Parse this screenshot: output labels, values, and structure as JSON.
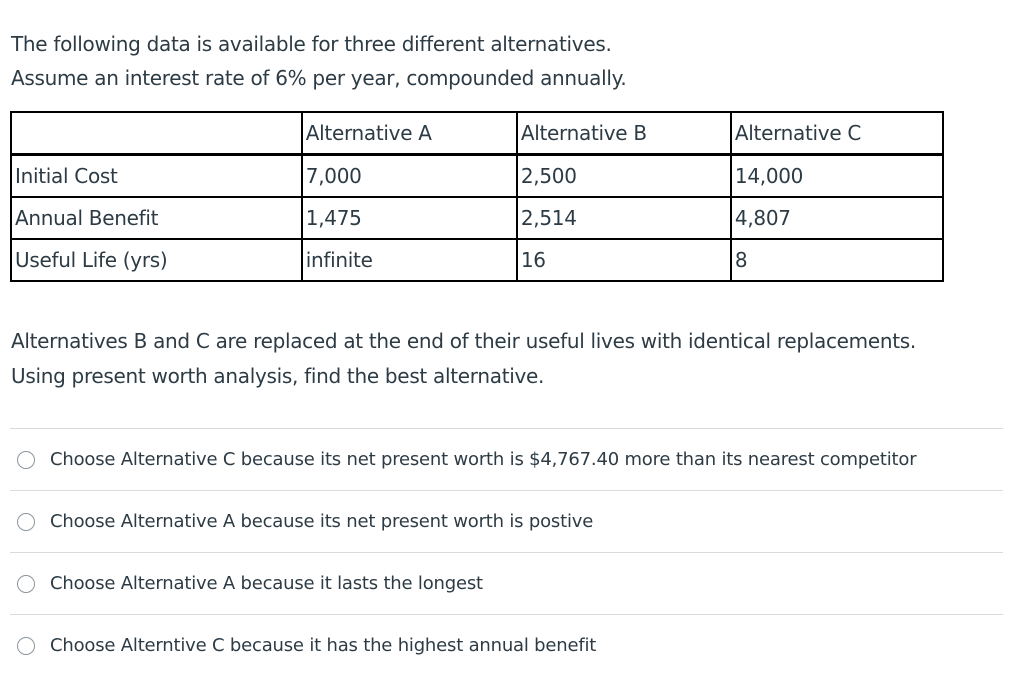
{
  "intro": {
    "line1": "The following data is available for three different alternatives.",
    "line2": "Assume an interest rate of 6% per year, compounded annually."
  },
  "table": {
    "headers": [
      "",
      "Alternative A",
      "Alternative B",
      "Alternative C"
    ],
    "rows": [
      {
        "label": "Initial Cost",
        "values": [
          "7,000",
          "2,500",
          "14,000"
        ]
      },
      {
        "label": "Annual Benefit",
        "values": [
          "1,475",
          "2,514",
          "4,807"
        ]
      },
      {
        "label": "Useful Life (yrs)",
        "values": [
          "infinite",
          "16",
          "8"
        ]
      }
    ]
  },
  "question": {
    "line1": "Alternatives B and C are replaced at the end of their useful lives with identical replacements.",
    "line2": "Using present worth analysis, find the best alternative."
  },
  "answers": [
    {
      "label": "Choose Alternative C because its net present worth is $4,767.40 more than its nearest competitor",
      "selected": false
    },
    {
      "label": "Choose Alternative A because its net present worth is postive",
      "selected": false
    },
    {
      "label": "Choose Alternative A because it lasts the longest",
      "selected": false
    },
    {
      "label": "Choose Alterntive C because it has the highest annual benefit",
      "selected": false
    }
  ]
}
